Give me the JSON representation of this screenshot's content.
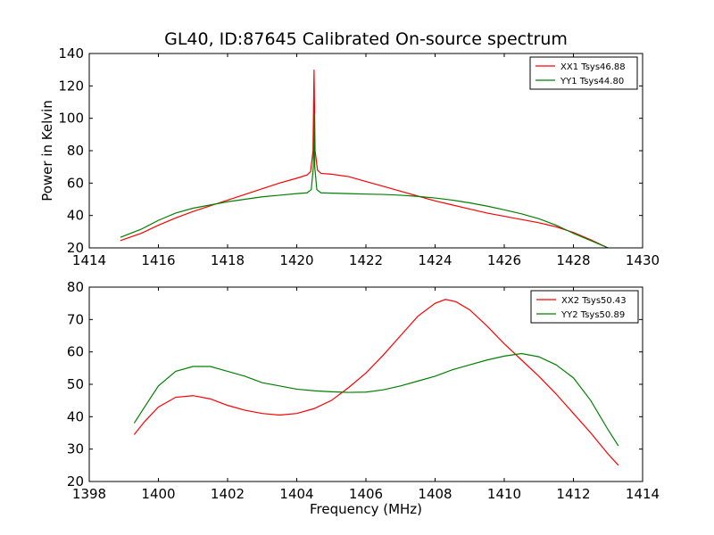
{
  "figure": {
    "title": "GL40, ID:87645 Calibrated On-source spectrum",
    "ylabel": "Power in Kelvin",
    "xlabel": "Frequency (MHz)"
  },
  "chart_data": [
    {
      "type": "line",
      "title": "GL40, ID:87645 Calibrated On-source spectrum",
      "xlabel": "",
      "ylabel": "Power in Kelvin",
      "xlim": [
        1414,
        1430
      ],
      "ylim": [
        20,
        140
      ],
      "xticks": [
        1414,
        1416,
        1418,
        1420,
        1422,
        1424,
        1426,
        1428,
        1430
      ],
      "yticks": [
        20,
        40,
        60,
        80,
        100,
        120,
        140
      ],
      "grid": false,
      "legend": "top-right",
      "series": [
        {
          "name": "XX1 Tsys46.88",
          "color": "#ff0000",
          "points": [
            [
              1414.9,
              24.5
            ],
            [
              1415.5,
              29
            ],
            [
              1416,
              34
            ],
            [
              1416.5,
              38.5
            ],
            [
              1417,
              42.5
            ],
            [
              1417.5,
              46
            ],
            [
              1418,
              49.5
            ],
            [
              1418.5,
              53
            ],
            [
              1419,
              56.5
            ],
            [
              1419.5,
              60
            ],
            [
              1420,
              63
            ],
            [
              1420.3,
              65
            ],
            [
              1420.4,
              67
            ],
            [
              1420.47,
              80
            ],
            [
              1420.5,
              130
            ],
            [
              1420.53,
              80
            ],
            [
              1420.6,
              68
            ],
            [
              1420.7,
              66
            ],
            [
              1421,
              65.5
            ],
            [
              1421.5,
              64
            ],
            [
              1422,
              61
            ],
            [
              1422.5,
              58
            ],
            [
              1423,
              55
            ],
            [
              1423.5,
              52
            ],
            [
              1424,
              49
            ],
            [
              1424.5,
              46.5
            ],
            [
              1425,
              44
            ],
            [
              1425.5,
              41.5
            ],
            [
              1426,
              39.5
            ],
            [
              1426.5,
              37.5
            ],
            [
              1427,
              35.5
            ],
            [
              1427.5,
              33
            ],
            [
              1428,
              29.5
            ],
            [
              1428.5,
              25
            ],
            [
              1429,
              20
            ]
          ]
        },
        {
          "name": "YY1 Tsys44.80",
          "color": "#008000",
          "points": [
            [
              1414.9,
              26.5
            ],
            [
              1415.5,
              31.5
            ],
            [
              1416,
              37
            ],
            [
              1416.5,
              41.5
            ],
            [
              1417,
              44.5
            ],
            [
              1417.5,
              46.5
            ],
            [
              1418,
              48.5
            ],
            [
              1418.5,
              50
            ],
            [
              1419,
              51.5
            ],
            [
              1419.5,
              52.5
            ],
            [
              1420,
              53.5
            ],
            [
              1420.3,
              54
            ],
            [
              1420.42,
              56
            ],
            [
              1420.48,
              70
            ],
            [
              1420.5,
              103
            ],
            [
              1420.52,
              70
            ],
            [
              1420.58,
              56
            ],
            [
              1420.7,
              54
            ],
            [
              1421,
              53.8
            ],
            [
              1421.5,
              53.5
            ],
            [
              1422,
              53.2
            ],
            [
              1422.5,
              53
            ],
            [
              1423,
              52.5
            ],
            [
              1423.5,
              51.8
            ],
            [
              1424,
              50.8
            ],
            [
              1424.5,
              49.5
            ],
            [
              1425,
              47.8
            ],
            [
              1425.5,
              45.8
            ],
            [
              1426,
              43.5
            ],
            [
              1426.5,
              41
            ],
            [
              1427,
              38
            ],
            [
              1427.5,
              34
            ],
            [
              1428,
              29
            ],
            [
              1428.5,
              24.5
            ],
            [
              1429,
              20
            ]
          ]
        }
      ]
    },
    {
      "type": "line",
      "title": "",
      "xlabel": "Frequency (MHz)",
      "ylabel": "",
      "xlim": [
        1398,
        1414
      ],
      "ylim": [
        20,
        80
      ],
      "xticks": [
        1398,
        1400,
        1402,
        1404,
        1406,
        1408,
        1410,
        1412,
        1414
      ],
      "yticks": [
        20,
        30,
        40,
        50,
        60,
        70,
        80
      ],
      "grid": false,
      "legend": "top-right",
      "series": [
        {
          "name": "XX2 Tsys50.43",
          "color": "#ff0000",
          "points": [
            [
              1399.3,
              34.5
            ],
            [
              1399.6,
              38.5
            ],
            [
              1400,
              43
            ],
            [
              1400.5,
              46
            ],
            [
              1401,
              46.5
            ],
            [
              1401.5,
              45.5
            ],
            [
              1402,
              43.5
            ],
            [
              1402.5,
              42
            ],
            [
              1403,
              41
            ],
            [
              1403.5,
              40.5
            ],
            [
              1404,
              41
            ],
            [
              1404.5,
              42.5
            ],
            [
              1405,
              45
            ],
            [
              1405.5,
              49
            ],
            [
              1406,
              53.5
            ],
            [
              1406.5,
              59
            ],
            [
              1407,
              65
            ],
            [
              1407.5,
              71
            ],
            [
              1408,
              75
            ],
            [
              1408.3,
              76.2
            ],
            [
              1408.6,
              75.5
            ],
            [
              1409,
              73
            ],
            [
              1409.5,
              68
            ],
            [
              1410,
              62.5
            ],
            [
              1410.5,
              57.5
            ],
            [
              1411,
              52.5
            ],
            [
              1411.5,
              47
            ],
            [
              1412,
              41
            ],
            [
              1412.5,
              35
            ],
            [
              1413,
              28.5
            ],
            [
              1413.3,
              25
            ]
          ]
        },
        {
          "name": "YY2 Tsys50.89",
          "color": "#008000",
          "points": [
            [
              1399.3,
              38
            ],
            [
              1399.6,
              43
            ],
            [
              1400,
              49.5
            ],
            [
              1400.5,
              54
            ],
            [
              1401,
              55.5
            ],
            [
              1401.5,
              55.5
            ],
            [
              1402,
              54
            ],
            [
              1402.5,
              52.5
            ],
            [
              1403,
              50.5
            ],
            [
              1403.5,
              49.5
            ],
            [
              1404,
              48.5
            ],
            [
              1404.5,
              48
            ],
            [
              1405,
              47.7
            ],
            [
              1405.5,
              47.5
            ],
            [
              1406,
              47.6
            ],
            [
              1406.5,
              48.3
            ],
            [
              1407,
              49.5
            ],
            [
              1407.5,
              51
            ],
            [
              1408,
              52.5
            ],
            [
              1408.5,
              54.5
            ],
            [
              1409,
              56
            ],
            [
              1409.5,
              57.5
            ],
            [
              1410,
              58.7
            ],
            [
              1410.5,
              59.5
            ],
            [
              1411,
              58.5
            ],
            [
              1411.5,
              56
            ],
            [
              1412,
              52
            ],
            [
              1412.5,
              45
            ],
            [
              1413,
              36
            ],
            [
              1413.3,
              31
            ]
          ]
        }
      ]
    }
  ]
}
